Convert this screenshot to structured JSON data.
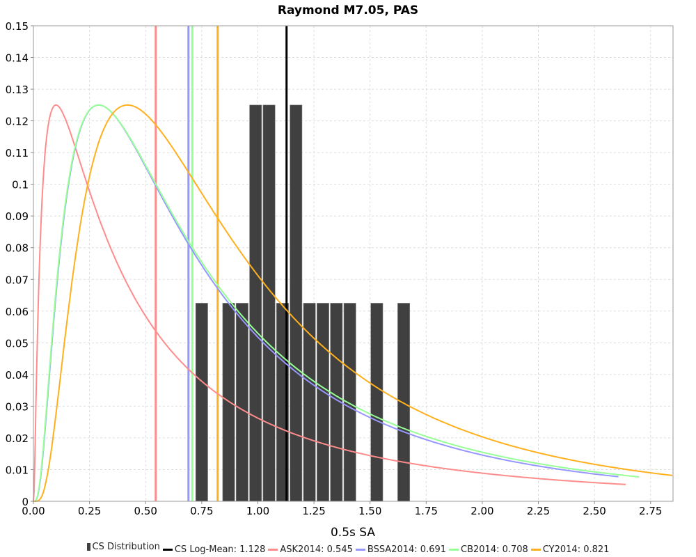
{
  "chart_data": {
    "type": "bar+line",
    "title": "Raymond M7.05, PAS",
    "xlabel": "0.5s SA",
    "ylabel": "",
    "xlim": [
      0,
      2.85
    ],
    "ylim": [
      0,
      0.15
    ],
    "grid": true,
    "legend_placement": "bottom",
    "x_ticks": [
      "0.00",
      "0.25",
      "0.50",
      "0.75",
      "1.00",
      "1.25",
      "1.50",
      "1.75",
      "2.00",
      "2.25",
      "2.50",
      "2.75"
    ],
    "y_ticks": [
      "0",
      "0.01",
      "0.02",
      "0.03",
      "0.04",
      "0.05",
      "0.06",
      "0.07",
      "0.08",
      "0.09",
      "0.1",
      "0.11",
      "0.12",
      "0.13",
      "0.14",
      "0.15"
    ],
    "histogram": {
      "name": "CS Distribution",
      "color": "#404040",
      "bin_width": 0.06,
      "bins": [
        {
          "start": 0.72,
          "value": 0.0625
        },
        {
          "start": 0.84,
          "value": 0.0625
        },
        {
          "start": 0.9,
          "value": 0.0625
        },
        {
          "start": 0.96,
          "value": 0.125
        },
        {
          "start": 1.02,
          "value": 0.125
        },
        {
          "start": 1.08,
          "value": 0.0625
        },
        {
          "start": 1.14,
          "value": 0.125
        },
        {
          "start": 1.2,
          "value": 0.0625
        },
        {
          "start": 1.26,
          "value": 0.0625
        },
        {
          "start": 1.32,
          "value": 0.0625
        },
        {
          "start": 1.38,
          "value": 0.0625
        },
        {
          "start": 1.5,
          "value": 0.0625
        },
        {
          "start": 1.62,
          "value": 0.0625
        }
      ]
    },
    "series": [
      {
        "name": "ASK2014",
        "median": 0.545,
        "sigma": 1.3,
        "peak": 0.125,
        "x_end": 2.64,
        "color": "#ff8c8c"
      },
      {
        "name": "BSSA2014",
        "median": 0.691,
        "sigma": 0.93,
        "peak": 0.125,
        "x_end": 2.61,
        "color": "#9696ff"
      },
      {
        "name": "CB2014",
        "median": 0.708,
        "sigma": 0.944,
        "peak": 0.125,
        "x_end": 2.7,
        "color": "#96ff96"
      },
      {
        "name": "CY2014",
        "median": 0.821,
        "sigma": 0.82,
        "peak": 0.125,
        "x_end": 2.85,
        "color": "#ffb01e"
      }
    ],
    "vlines": [
      {
        "name": "CS Log-Mean",
        "value": 1.128,
        "color": "#000000"
      },
      {
        "name": "ASK2014",
        "value": 0.545,
        "color": "#ff8c8c"
      },
      {
        "name": "BSSA2014",
        "value": 0.691,
        "color": "#9696ff"
      },
      {
        "name": "CB2014",
        "value": 0.708,
        "color": "#96ff96"
      },
      {
        "name": "CY2014",
        "value": 0.821,
        "color": "#ffb01e"
      }
    ],
    "legend": [
      {
        "label": "CS Distribution",
        "kind": "bar",
        "color": "#404040"
      },
      {
        "label": "CS Log-Mean: 1.128",
        "kind": "line",
        "color": "#000000"
      },
      {
        "label": "ASK2014: 0.545",
        "kind": "line",
        "color": "#ff8c8c"
      },
      {
        "label": "BSSA2014: 0.691",
        "kind": "line",
        "color": "#9696ff"
      },
      {
        "label": "CB2014: 0.708",
        "kind": "line",
        "color": "#96ff96"
      },
      {
        "label": "CY2014: 0.821",
        "kind": "line",
        "color": "#ffb01e"
      }
    ]
  }
}
